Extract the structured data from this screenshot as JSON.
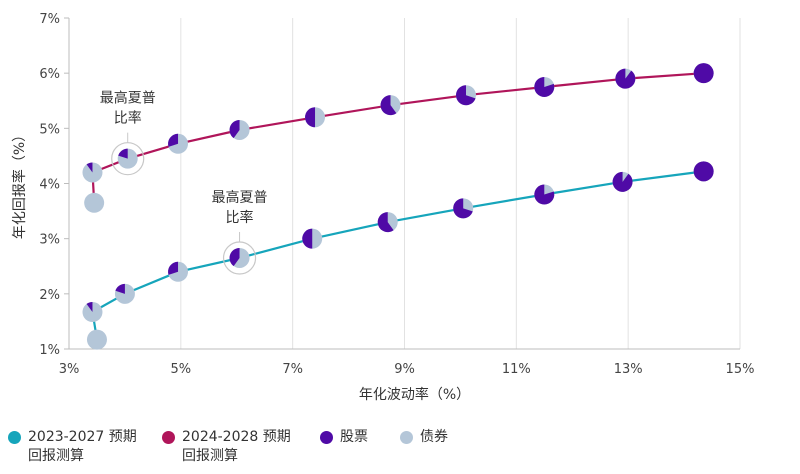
{
  "chart_data": {
    "type": "line",
    "xlabel": "年化波动率（%）",
    "ylabel": "年化回报率（%）",
    "xlim": [
      3,
      15
    ],
    "ylim": [
      1,
      7
    ],
    "x_ticks": [
      "3%",
      "5%",
      "7%",
      "9%",
      "11%",
      "13%",
      "15%"
    ],
    "y_ticks": [
      "1%",
      "2%",
      "3%",
      "4%",
      "5%",
      "6%",
      "7%"
    ],
    "grid": "vertical",
    "legend_position": "bottom",
    "series": [
      {
        "name": "2024-2028 预期回报测算",
        "color": "#b0155a",
        "points": [
          {
            "x": 3.45,
            "y": 3.65,
            "stock": 0.0
          },
          {
            "x": 3.42,
            "y": 4.2,
            "stock": 0.1
          },
          {
            "x": 4.05,
            "y": 4.45,
            "stock": 0.2
          },
          {
            "x": 4.95,
            "y": 4.72,
            "stock": 0.3
          },
          {
            "x": 6.05,
            "y": 4.97,
            "stock": 0.4
          },
          {
            "x": 7.4,
            "y": 5.2,
            "stock": 0.5
          },
          {
            "x": 8.75,
            "y": 5.42,
            "stock": 0.6
          },
          {
            "x": 10.1,
            "y": 5.6,
            "stock": 0.7
          },
          {
            "x": 11.5,
            "y": 5.75,
            "stock": 0.8
          },
          {
            "x": 12.95,
            "y": 5.9,
            "stock": 0.9
          },
          {
            "x": 14.35,
            "y": 6.0,
            "stock": 1.0
          }
        ]
      },
      {
        "name": "2023-2027 预期回报测算",
        "color": "#16a5bb",
        "points": [
          {
            "x": 3.5,
            "y": 1.17,
            "stock": 0.0
          },
          {
            "x": 3.42,
            "y": 1.67,
            "stock": 0.1
          },
          {
            "x": 4.0,
            "y": 2.0,
            "stock": 0.2
          },
          {
            "x": 4.95,
            "y": 2.4,
            "stock": 0.3
          },
          {
            "x": 6.05,
            "y": 2.65,
            "stock": 0.4
          },
          {
            "x": 7.35,
            "y": 3.0,
            "stock": 0.5
          },
          {
            "x": 8.7,
            "y": 3.3,
            "stock": 0.6
          },
          {
            "x": 10.05,
            "y": 3.55,
            "stock": 0.7
          },
          {
            "x": 11.5,
            "y": 3.8,
            "stock": 0.8
          },
          {
            "x": 12.9,
            "y": 4.03,
            "stock": 0.9
          },
          {
            "x": 14.35,
            "y": 4.22,
            "stock": 1.0
          }
        ]
      }
    ],
    "pie_colors": {
      "stock": "#4f0aa6",
      "bond": "#b4c6d8"
    },
    "annotations": [
      {
        "text": "最高夏普\n比率",
        "x": 4.05,
        "y": 4.45
      },
      {
        "text": "最高夏普\n比率",
        "x": 6.05,
        "y": 2.65
      }
    ],
    "legend": [
      {
        "label": "2023-2027 预期\n回报测算",
        "color": "#16a5bb"
      },
      {
        "label": "2024-2028 预期\n回报测算",
        "color": "#b0155a"
      },
      {
        "label": "股票",
        "color": "#4f0aa6"
      },
      {
        "label": "债券",
        "color": "#b4c6d8"
      }
    ]
  }
}
